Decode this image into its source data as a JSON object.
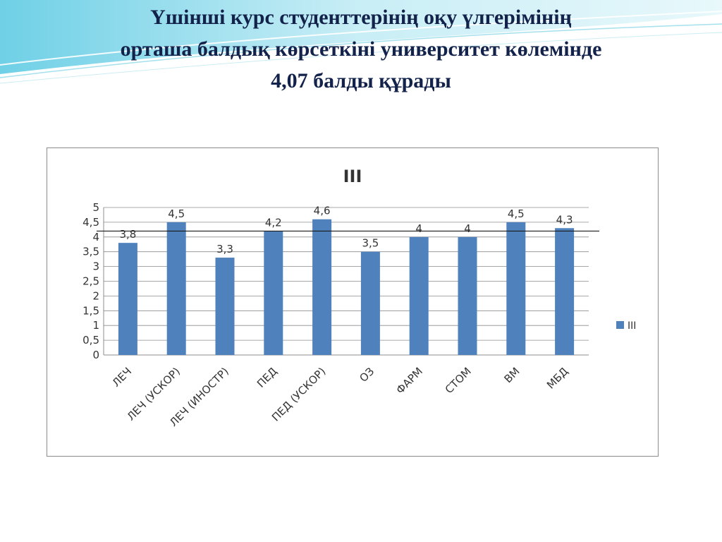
{
  "slide": {
    "title_lines": [
      "Үшінші курс студенттерінің оқу үлгерімінің",
      "орташа балдық көрсеткіні университет көлемінде",
      "4,07 балды құрады"
    ]
  },
  "chart_data": {
    "type": "bar",
    "title": "III",
    "categories": [
      "ЛЕЧ",
      "ЛЕЧ (УСКОР)",
      "ЛЕЧ (ИНОСТР)",
      "ПЕД",
      "ПЕД (УСКОР)",
      "ОЗ",
      "ФАРМ",
      "СТОМ",
      "ВМ",
      "МБД"
    ],
    "series": [
      {
        "name": "III",
        "values": [
          3.8,
          4.5,
          3.3,
          4.2,
          4.6,
          3.5,
          4,
          4,
          4.5,
          4.3
        ],
        "value_labels": [
          "3,8",
          "4,5",
          "3,3",
          "4,2",
          "4,6",
          "3,5",
          "4",
          "4",
          "4,5",
          "4,3"
        ],
        "color": "#4f81bd"
      }
    ],
    "ylim": [
      0,
      5
    ],
    "yticks": [
      0,
      0.5,
      1,
      1.5,
      2,
      2.5,
      3,
      3.5,
      4,
      4.5,
      5
    ],
    "ytick_labels": [
      "0",
      "0,5",
      "1",
      "1,5",
      "2",
      "2,5",
      "3",
      "3,5",
      "4",
      "4,5",
      "5"
    ],
    "reference_line": 4.2,
    "grid": true,
    "legend_position": "right",
    "xlabel": "",
    "ylabel": ""
  }
}
